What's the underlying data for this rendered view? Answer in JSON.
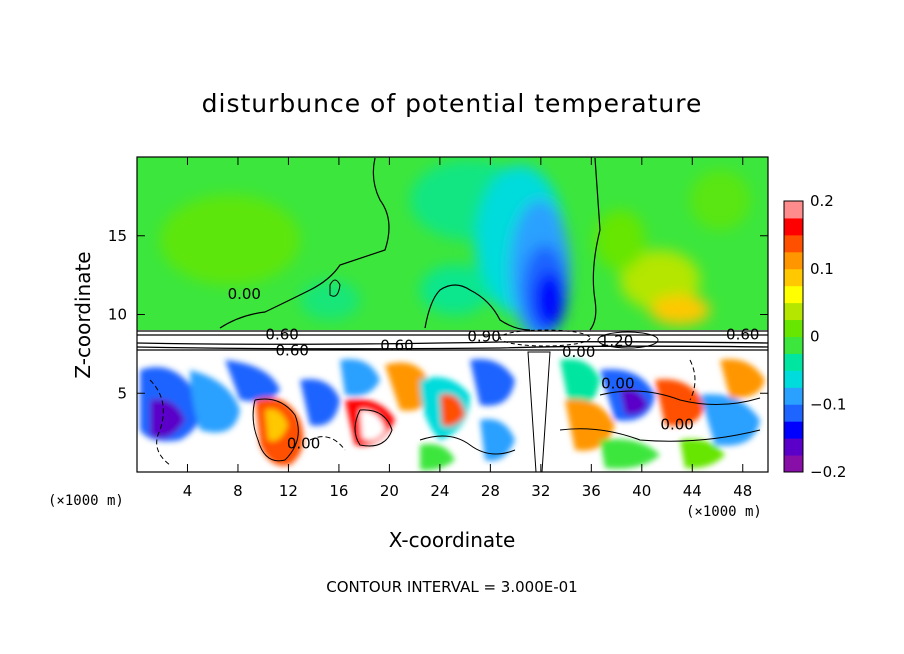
{
  "chart_data": {
    "type": "heatmap",
    "title": "disturbunce of potential temperature",
    "xlabel": "X-coordinate",
    "ylabel": "Z-coordinate",
    "x_unit": "(×1000 m)",
    "y_unit": "(×1000 m)",
    "xlim": [
      0,
      50
    ],
    "ylim": [
      0,
      20
    ],
    "x_ticks": [
      4,
      8,
      12,
      16,
      20,
      24,
      28,
      32,
      36,
      40,
      44,
      48
    ],
    "y_ticks": [
      5,
      10,
      15
    ],
    "colorbar": {
      "min": -0.2,
      "max": 0.2,
      "tick_values": [
        0.2,
        0.1,
        0,
        -0.1,
        -0.2
      ],
      "tick_labels": [
        "0.2",
        "0.1",
        "0",
        "−0.1",
        "−0.2"
      ],
      "colors": [
        "#880ea8",
        "#5a00c8",
        "#0000ff",
        "#1e64ff",
        "#2aa0ff",
        "#00dcdc",
        "#00e6a0",
        "#3ce63c",
        "#66e600",
        "#b4e600",
        "#ffff00",
        "#ffc800",
        "#ff9600",
        "#ff5000",
        "#ff0000",
        "#ff8c8c"
      ]
    },
    "field_description_values": {
      "upper_background": 0.0,
      "central_column_min": -0.17,
      "lower_layer_range": [
        -0.2,
        0.2
      ]
    },
    "contour_labels": [
      {
        "text": "0.00",
        "x": 8.5,
        "y": 11.0
      },
      {
        "text": "0.60",
        "x": 11.5,
        "y": 8.4
      },
      {
        "text": "0.60",
        "x": 12.3,
        "y": 7.4
      },
      {
        "text": "0.60",
        "x": 20.6,
        "y": 7.7
      },
      {
        "text": "0.60",
        "x": 48.0,
        "y": 8.4
      },
      {
        "text": "0.00",
        "x": 35.0,
        "y": 7.3
      },
      {
        "text": "0.00",
        "x": 38.1,
        "y": 5.3
      },
      {
        "text": "0.00",
        "x": 42.8,
        "y": 2.7
      },
      {
        "text": "0.00",
        "x": 13.2,
        "y": 1.5
      },
      {
        "text": "1.20",
        "x": 38.0,
        "y": 8.0
      },
      {
        "text": "0.90",
        "x": 27.5,
        "y": 8.3
      }
    ],
    "footer": "CONTOUR INTERVAL = 3.000E-01"
  }
}
